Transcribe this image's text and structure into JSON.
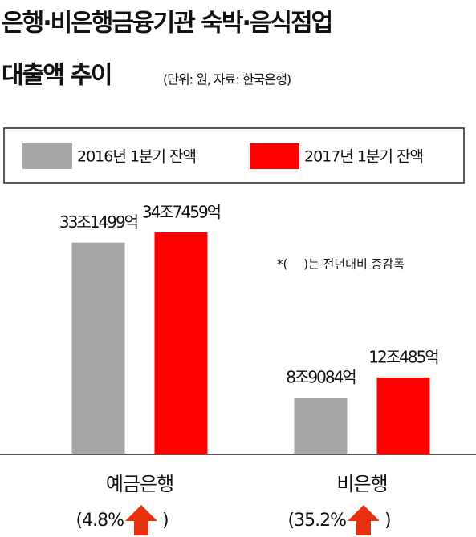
{
  "chart_data": {
    "type": "bar",
    "title": [
      "은행·비은행금융기관 숙박·음식점업",
      "대출액 추이"
    ],
    "subtitle": "(단위: 원, 자료: 한국은행)",
    "categories": [
      "예금은행",
      "비은행"
    ],
    "series": [
      {
        "name": "2016년 1분기 잔액",
        "color": "#a6a6a6",
        "values": [
          331499,
          89084
        ],
        "value_labels": [
          "33조1499억",
          "8조9084억"
        ]
      },
      {
        "name": "2017년 1분기 잔액",
        "color": "#ff0000",
        "values": [
          347459,
          120485
        ],
        "value_labels": [
          "34조7459억",
          "12조485억"
        ]
      }
    ],
    "growth": {
      "values": [
        4.8,
        35.2
      ],
      "value_labels": [
        "(4.8%",
        "(35.2%"
      ],
      "close": ")",
      "color": "#e8310e"
    },
    "note": "*(　 )는 전년대비 증감폭"
  }
}
